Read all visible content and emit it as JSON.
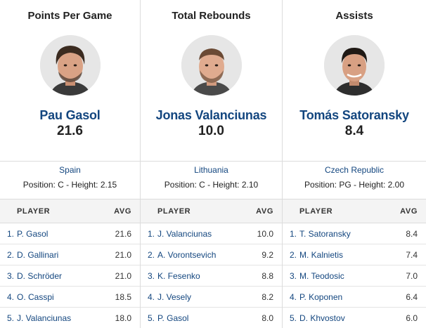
{
  "columns": [
    {
      "category": "Points Per Game",
      "leader": {
        "name": "Pau Gasol",
        "value": "21.6",
        "country": "Spain",
        "details": "Position: C - Height: 2.15",
        "headshot_icon": "player-headshot-icon"
      },
      "table": {
        "header_player": "PLAYER",
        "header_avg": "AVG",
        "rows": [
          {
            "rank": "1.",
            "name": "P. Gasol",
            "avg": "21.6"
          },
          {
            "rank": "2.",
            "name": "D. Gallinari",
            "avg": "21.0"
          },
          {
            "rank": "3.",
            "name": "D. Schröder",
            "avg": "21.0"
          },
          {
            "rank": "4.",
            "name": "O. Casspi",
            "avg": "18.5"
          },
          {
            "rank": "5.",
            "name": "J. Valanciunas",
            "avg": "18.0"
          }
        ]
      }
    },
    {
      "category": "Total Rebounds",
      "leader": {
        "name": "Jonas Valanciunas",
        "value": "10.0",
        "country": "Lithuania",
        "details": "Position: C - Height: 2.10",
        "headshot_icon": "player-headshot-icon"
      },
      "table": {
        "header_player": "PLAYER",
        "header_avg": "AVG",
        "rows": [
          {
            "rank": "1.",
            "name": "J. Valanciunas",
            "avg": "10.0"
          },
          {
            "rank": "2.",
            "name": "A. Vorontsevich",
            "avg": "9.2"
          },
          {
            "rank": "3.",
            "name": "K. Fesenko",
            "avg": "8.8"
          },
          {
            "rank": "4.",
            "name": "J. Vesely",
            "avg": "8.2"
          },
          {
            "rank": "5.",
            "name": "P. Gasol",
            "avg": "8.0"
          }
        ]
      }
    },
    {
      "category": "Assists",
      "leader": {
        "name": "Tomás Satoransky",
        "value": "8.4",
        "country": "Czech Republic",
        "details": "Position: PG - Height: 2.00",
        "headshot_icon": "player-headshot-icon"
      },
      "table": {
        "header_player": "PLAYER",
        "header_avg": "AVG",
        "rows": [
          {
            "rank": "1.",
            "name": "T. Satoransky",
            "avg": "8.4"
          },
          {
            "rank": "2.",
            "name": "M. Kalnietis",
            "avg": "7.4"
          },
          {
            "rank": "3.",
            "name": "M. Teodosic",
            "avg": "7.0"
          },
          {
            "rank": "4.",
            "name": "P. Koponen",
            "avg": "6.4"
          },
          {
            "rank": "5.",
            "name": "D. Khvostov",
            "avg": "6.0"
          }
        ]
      }
    }
  ],
  "colors": {
    "link": "#13467f",
    "text": "#222222",
    "border": "#dcdcdc",
    "header_bg": "#f4f4f4"
  }
}
